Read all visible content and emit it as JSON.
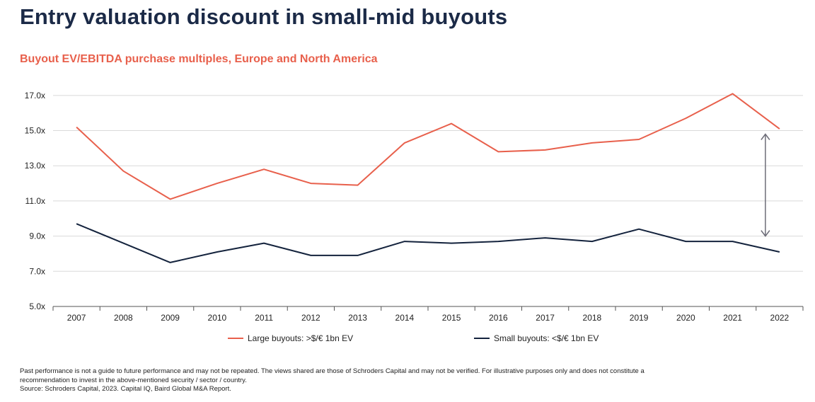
{
  "header": {
    "title": "Entry valuation discount in small-mid buyouts",
    "subtitle": "Buyout EV/EBITDA purchase multiples, Europe and North America"
  },
  "colors": {
    "title": "#1b2a47",
    "subtitle": "#e8604c",
    "large": "#e8604c",
    "small": "#14233d",
    "grid": "#d9d9d9",
    "arrow": "#6d6d78"
  },
  "chart_data": {
    "type": "line",
    "categories": [
      "2007",
      "2008",
      "2009",
      "2010",
      "2011",
      "2012",
      "2013",
      "2014",
      "2015",
      "2016",
      "2017",
      "2018",
      "2019",
      "2020",
      "2021",
      "2022"
    ],
    "y_ticks": [
      "5.0x",
      "7.0x",
      "9.0x",
      "11.0x",
      "13.0x",
      "15.0x",
      "17.0x"
    ],
    "ylim": [
      5,
      17
    ],
    "grid": true,
    "legend_position": "bottom",
    "series": [
      {
        "name": "Large buyouts: >$/€ 1bn EV",
        "color": "#e8604c",
        "values": [
          15.2,
          12.7,
          11.1,
          12.0,
          12.8,
          12.0,
          11.9,
          14.3,
          15.4,
          13.8,
          13.9,
          14.3,
          14.5,
          15.7,
          17.1,
          15.1
        ]
      },
      {
        "name": "Small buyouts: <$/€ 1bn EV",
        "color": "#14233d",
        "values": [
          9.7,
          8.6,
          7.5,
          8.1,
          8.6,
          7.9,
          7.9,
          8.7,
          8.6,
          8.7,
          8.9,
          8.7,
          9.4,
          8.7,
          8.7,
          8.1
        ]
      }
    ],
    "annotations": [
      {
        "type": "double-arrow",
        "x": "2022",
        "y_from": 9.0,
        "y_to": 14.8
      }
    ]
  },
  "footnote": {
    "line1": "Past performance is not a guide to future performance and may not be repeated. The views shared are those of Schroders Capital and may not be verified. For illustrative purposes only and does not constitute a",
    "line2": "recommendation to invest in the above-mentioned security / sector / country.",
    "source": "Source: Schroders Capital, 2023. Capital IQ, Baird Global M&A Report."
  }
}
